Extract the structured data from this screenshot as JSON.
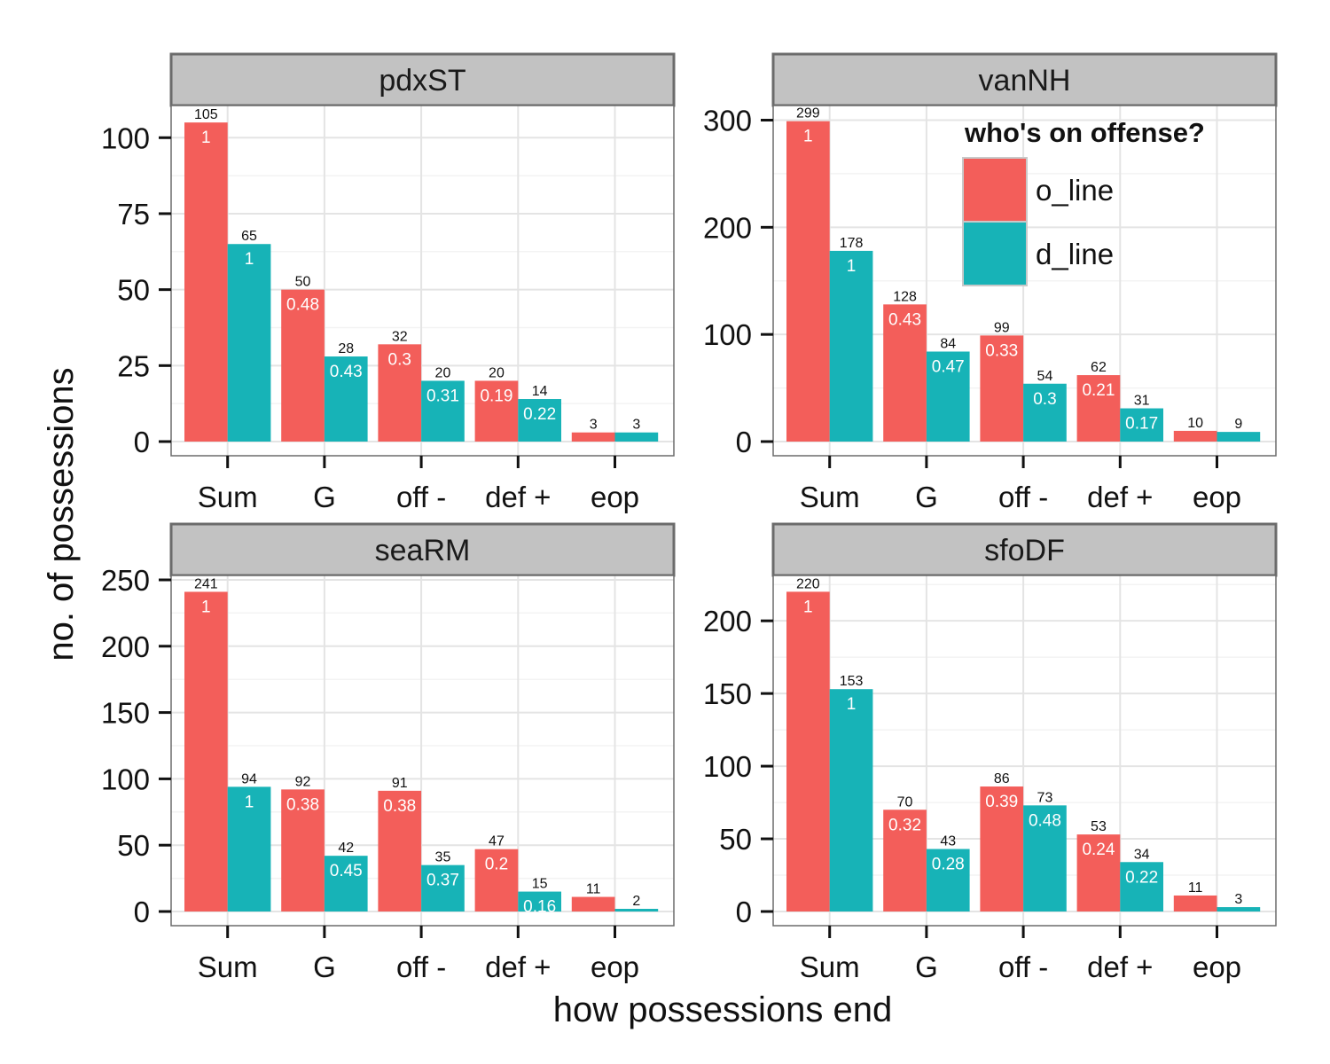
{
  "chart_data": {
    "type": "bar",
    "layout": "facet-grid-2x2",
    "xlabel": "how possessions end",
    "ylabel": "no. of possessions",
    "categories": [
      "Sum",
      "G",
      "off -",
      "def +",
      "eop"
    ],
    "legend": {
      "title": "who's on offense?",
      "placement": "top-right",
      "entries": [
        "o_line",
        "d_line"
      ]
    },
    "colors": {
      "o_line": "#F35E5A",
      "d_line": "#17B3B7"
    },
    "grid": true,
    "panels": [
      {
        "title": "pdxST",
        "ylim": [
          0,
          110
        ],
        "yticks": [
          0,
          25,
          50,
          75,
          100
        ],
        "series": [
          {
            "name": "o_line",
            "values": [
              105,
              50,
              32,
              20,
              3
            ],
            "proportions": [
              "1",
              "0.48",
              "0.3",
              "0.19",
              ""
            ]
          },
          {
            "name": "d_line",
            "values": [
              65,
              28,
              20,
              14,
              3
            ],
            "proportions": [
              "1",
              "0.43",
              "0.31",
              "0.22",
              ""
            ]
          }
        ]
      },
      {
        "title": "vanNH",
        "ylim": [
          0,
          312
        ],
        "yticks": [
          0,
          100,
          200,
          300
        ],
        "series": [
          {
            "name": "o_line",
            "values": [
              299,
              128,
              99,
              62,
              10
            ],
            "proportions": [
              "1",
              "0.43",
              "0.33",
              "0.21",
              ""
            ]
          },
          {
            "name": "d_line",
            "values": [
              178,
              84,
              54,
              31,
              9
            ],
            "proportions": [
              "1",
              "0.47",
              "0.3",
              "0.17",
              ""
            ]
          }
        ]
      },
      {
        "title": "seaRM",
        "ylim": [
          0,
          252
        ],
        "yticks": [
          0,
          50,
          100,
          150,
          200,
          250
        ],
        "series": [
          {
            "name": "o_line",
            "values": [
              241,
              92,
              91,
              47,
              11
            ],
            "proportions": [
              "1",
              "0.38",
              "0.38",
              "0.2",
              ""
            ]
          },
          {
            "name": "d_line",
            "values": [
              94,
              42,
              35,
              15,
              2
            ],
            "proportions": [
              "1",
              "0.45",
              "0.37",
              "0.16",
              ""
            ]
          }
        ]
      },
      {
        "title": "sfoDF",
        "ylim": [
          0,
          230
        ],
        "yticks": [
          0,
          50,
          100,
          150,
          200
        ],
        "series": [
          {
            "name": "o_line",
            "values": [
              220,
              70,
              86,
              53,
              11
            ],
            "proportions": [
              "1",
              "0.32",
              "0.39",
              "0.24",
              ""
            ]
          },
          {
            "name": "d_line",
            "values": [
              153,
              43,
              73,
              34,
              3
            ],
            "proportions": [
              "1",
              "0.28",
              "0.48",
              "0.22",
              ""
            ]
          }
        ]
      }
    ]
  }
}
